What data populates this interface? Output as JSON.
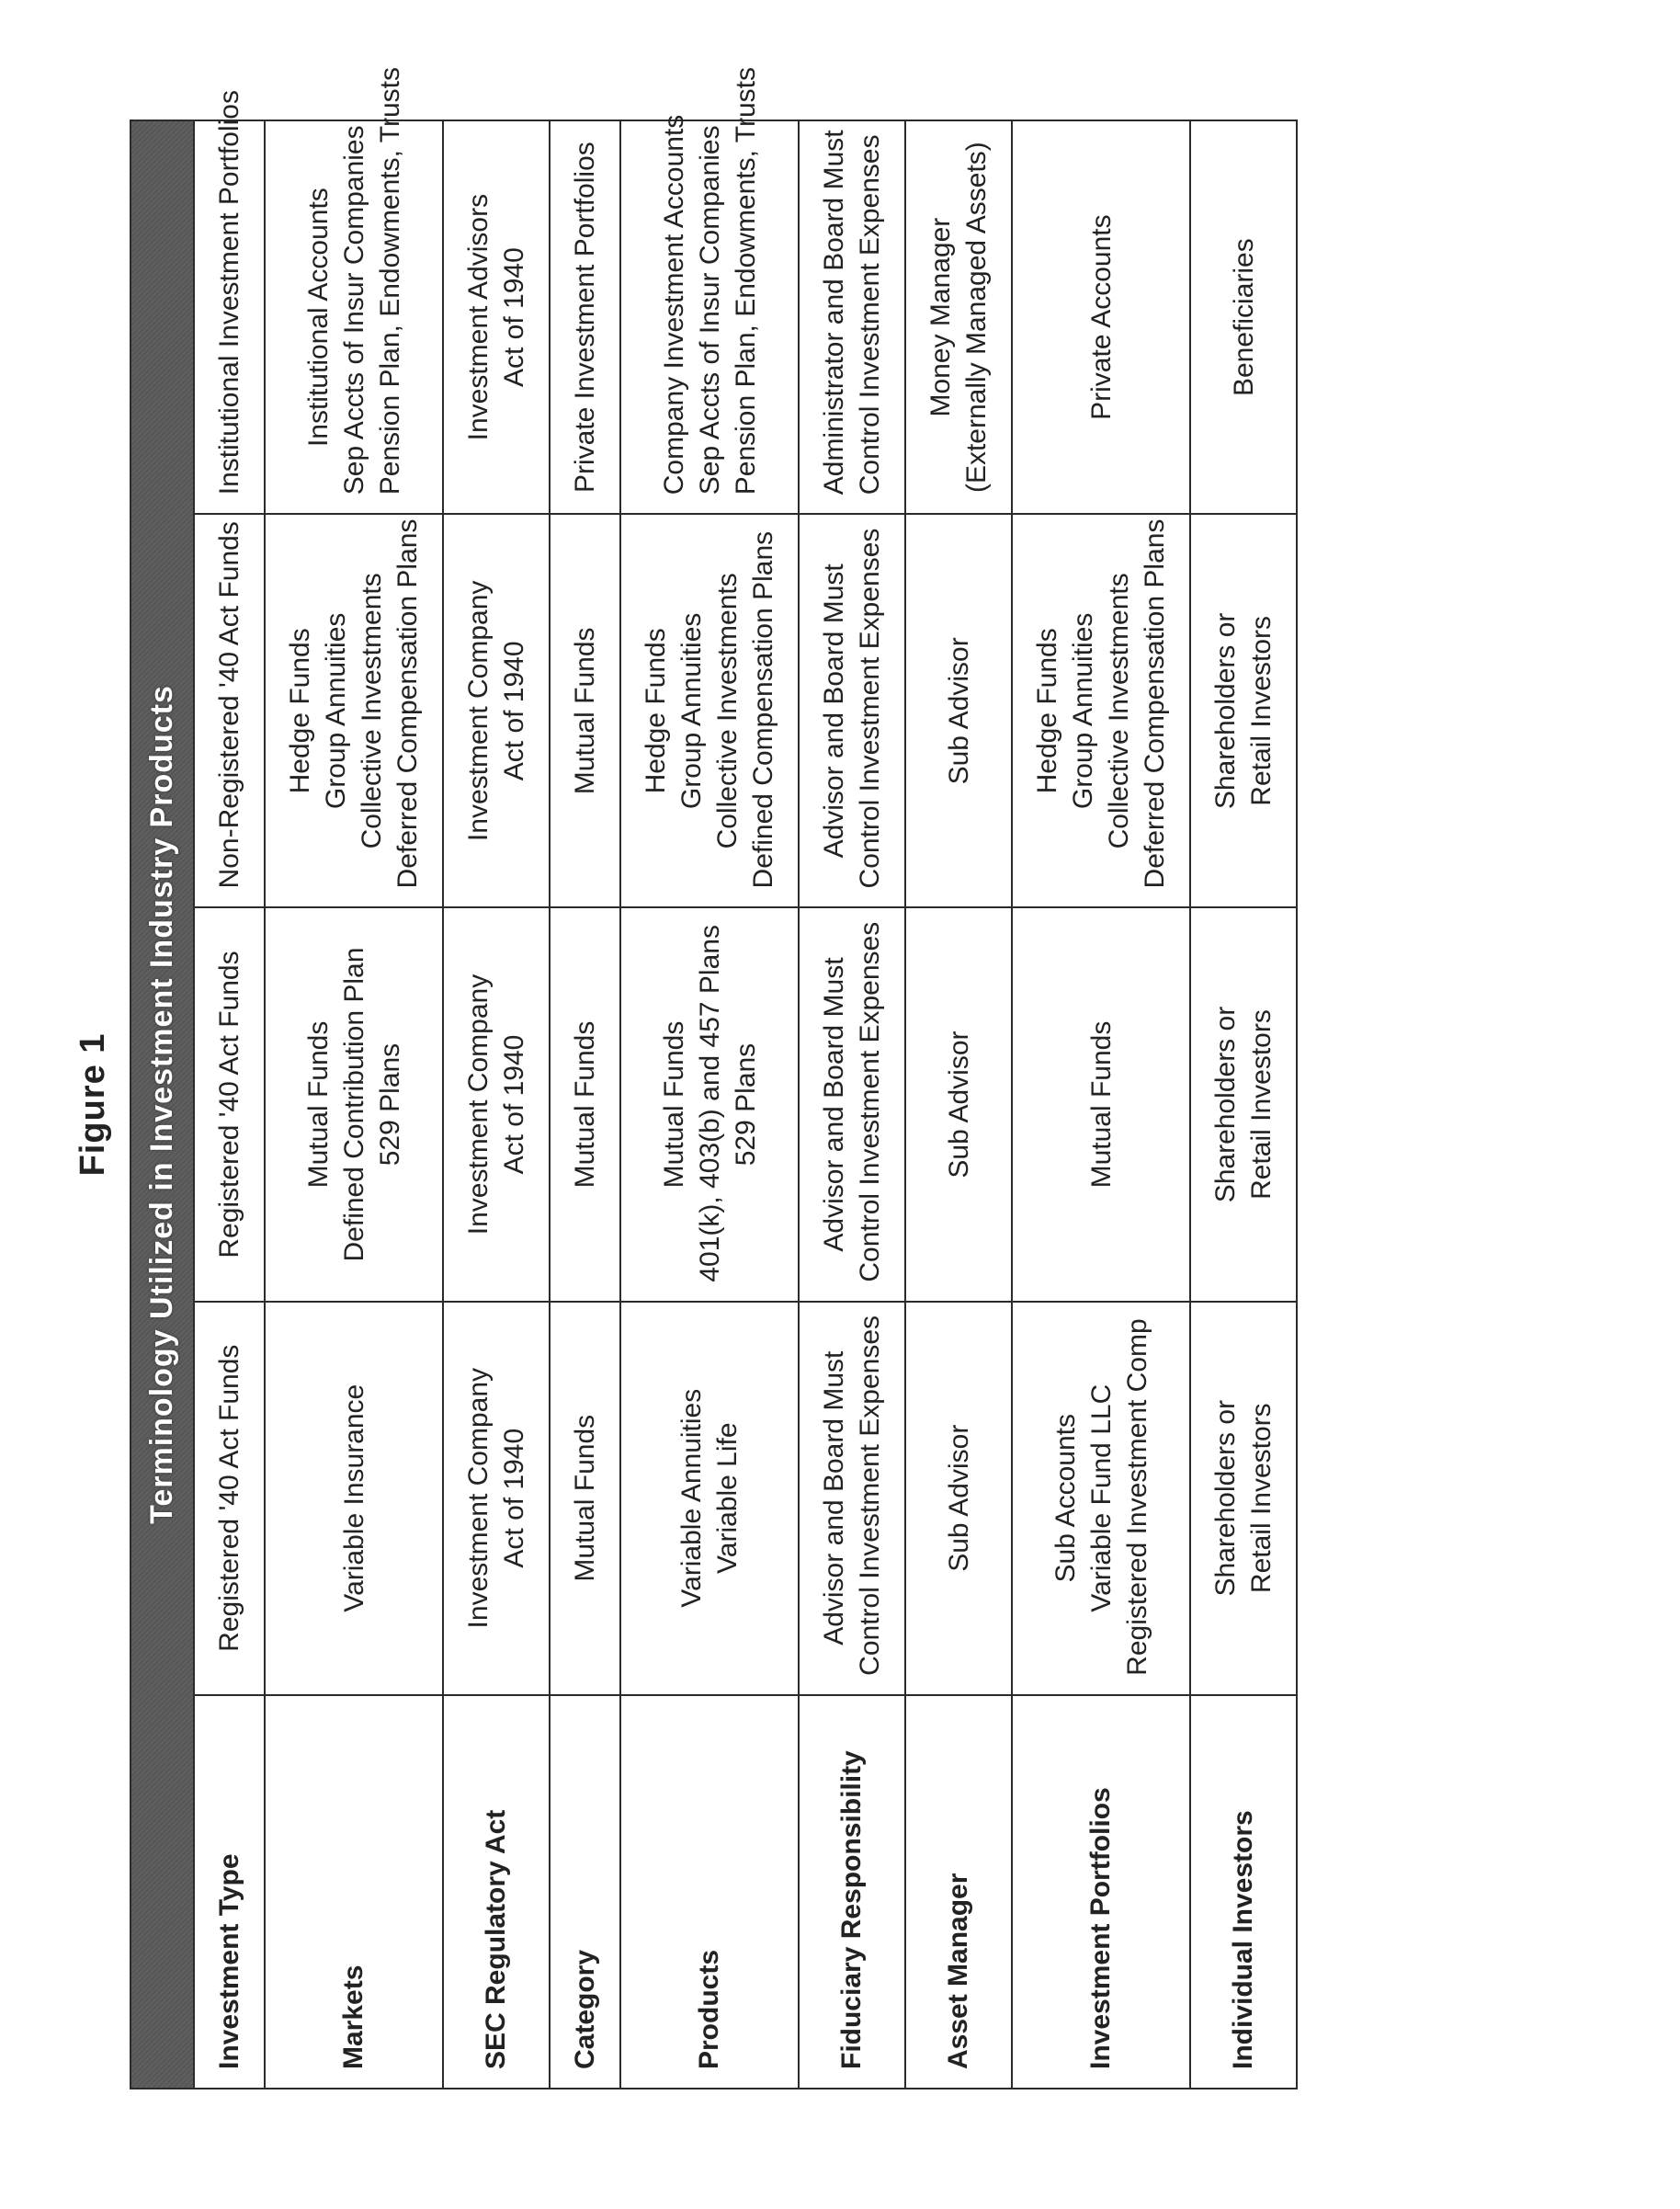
{
  "figure_title": "Figure 1",
  "banner": "Terminology Utilized in Investment Industry Products",
  "colors": {
    "banner_bg": "#5a5a5a",
    "banner_text": "#ffffff",
    "border": "#2b2b2b",
    "text": "#222222",
    "page_bg": "#ffffff"
  },
  "column_widths_pct": [
    20,
    20,
    20,
    20,
    20
  ],
  "font": {
    "title_size_pt": 28,
    "banner_size_pt": 26,
    "cell_size_pt": 22,
    "label_weight": "bold"
  },
  "rows": [
    {
      "label": "Investment Type",
      "cells": [
        [
          "Registered '40 Act Funds"
        ],
        [
          "Registered '40 Act Funds"
        ],
        [
          "Non-Registered '40 Act Funds"
        ],
        [
          "Institutional Investment Portfolios"
        ]
      ]
    },
    {
      "label": "Markets",
      "cells": [
        [
          "Variable Insurance"
        ],
        [
          "Mutual Funds",
          "Defined Contribution Plan",
          "529 Plans"
        ],
        [
          "Hedge Funds",
          "Group Annuities",
          "Collective Investments",
          "Deferred Compensation Plans"
        ],
        [
          "Institutional Accounts",
          "Sep Accts of Insur Companies",
          "Pension Plan, Endowments, Trusts"
        ]
      ]
    },
    {
      "label": "SEC Regulatory Act",
      "cells": [
        [
          "Investment Company",
          "Act of 1940"
        ],
        [
          "Investment Company",
          "Act of 1940"
        ],
        [
          "Investment Company",
          "Act of 1940"
        ],
        [
          "Investment Advisors",
          "Act of 1940"
        ]
      ]
    },
    {
      "label": "Category",
      "cells": [
        [
          "Mutual Funds"
        ],
        [
          "Mutual Funds"
        ],
        [
          "Mutual Funds"
        ],
        [
          "Private Investment Portfolios"
        ]
      ]
    },
    {
      "label": "Products",
      "cells": [
        [
          "Variable Annuities",
          "Variable Life"
        ],
        [
          "Mutual Funds",
          "401(k), 403(b) and 457 Plans",
          "529 Plans"
        ],
        [
          "Hedge Funds",
          "Group Annuities",
          "Collective Investments",
          "Defined Compensation Plans"
        ],
        [
          "Company Investment Accounts",
          "Sep Accts of Insur Companies",
          "Pension Plan, Endowments, Trusts"
        ]
      ]
    },
    {
      "label": "Fiduciary Responsibility",
      "cells": [
        [
          "Advisor and Board Must",
          "Control Investment Expenses"
        ],
        [
          "Advisor and Board Must",
          "Control Investment Expenses"
        ],
        [
          "Advisor and Board Must",
          "Control Investment Expenses"
        ],
        [
          "Administrator and Board Must",
          "Control Investment Expenses"
        ]
      ]
    },
    {
      "label": "Asset Manager",
      "cells": [
        [
          "Sub Advisor"
        ],
        [
          "Sub Advisor"
        ],
        [
          "Sub Advisor"
        ],
        [
          "Money Manager",
          "(Externally Managed Assets)"
        ]
      ]
    },
    {
      "label": "Investment Portfolios",
      "cells": [
        [
          "Sub Accounts",
          "Variable Fund LLC",
          "Registered Investment Comp"
        ],
        [
          "Mutual Funds"
        ],
        [
          "Hedge Funds",
          "Group Annuities",
          "Collective Investments",
          "Deferred Compensation Plans"
        ],
        [
          "Private Accounts"
        ]
      ]
    },
    {
      "label": "Individual Investors",
      "cells": [
        [
          "Shareholders or",
          "Retail Investors"
        ],
        [
          "Shareholders or",
          "Retail Investors"
        ],
        [
          "Shareholders or",
          "Retail Investors"
        ],
        [
          "Beneficiaries"
        ]
      ]
    }
  ]
}
